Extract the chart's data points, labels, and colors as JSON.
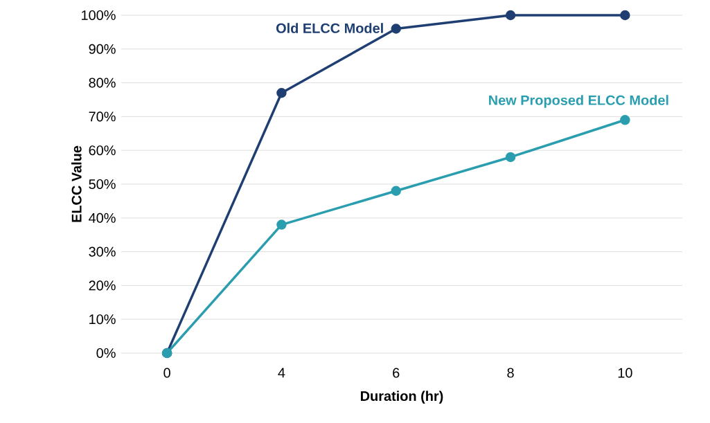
{
  "chart_data": {
    "type": "line",
    "xlabel": "Duration (hr)",
    "ylabel": "ELCC Value",
    "categories": [
      "0",
      "4",
      "6",
      "8",
      "10"
    ],
    "series": [
      {
        "name": "Old ELCC Model",
        "color": "#1f3f72",
        "values": [
          0,
          77,
          96,
          100,
          100
        ]
      },
      {
        "name": "New Proposed ELCC Model",
        "color": "#2a9eae",
        "values": [
          0,
          38,
          48,
          58,
          69
        ]
      }
    ],
    "ylim": [
      0,
      100
    ],
    "yticks": [
      {
        "value": 0,
        "label": "0%"
      },
      {
        "value": 10,
        "label": "10%"
      },
      {
        "value": 20,
        "label": "20%"
      },
      {
        "value": 30,
        "label": "30%"
      },
      {
        "value": 40,
        "label": "40%"
      },
      {
        "value": 50,
        "label": "50%"
      },
      {
        "value": 60,
        "label": "60%"
      },
      {
        "value": 70,
        "label": "70%"
      },
      {
        "value": 80,
        "label": "80%"
      },
      {
        "value": 90,
        "label": "90%"
      },
      {
        "value": 100,
        "label": "100%"
      }
    ],
    "grid": "y",
    "marker": "circle",
    "line_style": "solid"
  }
}
